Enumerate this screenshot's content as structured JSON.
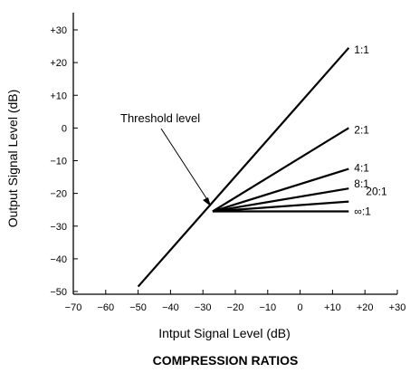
{
  "chart_data": {
    "type": "line",
    "title": "COMPRESSION RATIOS",
    "xlabel": "Intput Signal Level (dB)",
    "ylabel": "Output Signal Level (dB)",
    "xlim": [
      -70,
      30
    ],
    "ylim": [
      -52,
      32
    ],
    "xticks": [
      "−70",
      "−60",
      "−50",
      "−40",
      "−30",
      "−20",
      "−10",
      "0",
      "+10",
      "+20",
      "+30"
    ],
    "yticks": [
      "+30",
      "+20",
      "+10",
      "0",
      "−10",
      "−20",
      "−30",
      "−40",
      "−50"
    ],
    "xtick_values": [
      -70,
      -60,
      -50,
      -40,
      -30,
      -20,
      -10,
      0,
      10,
      20,
      30
    ],
    "ytick_values": [
      30,
      20,
      10,
      0,
      -10,
      -20,
      -30,
      -40,
      -50
    ],
    "threshold": {
      "x": -27,
      "y": -25.5
    },
    "series": [
      {
        "name": "1:1",
        "x": [
          -50,
          15
        ],
        "y": [
          -48.5,
          24.5
        ]
      },
      {
        "name": "2:1",
        "x": [
          -27,
          15
        ],
        "y": [
          -25.5,
          0
        ]
      },
      {
        "name": "4:1",
        "x": [
          -27,
          15
        ],
        "y": [
          -25.5,
          -12.5
        ]
      },
      {
        "name": "8:1",
        "x": [
          -27,
          15
        ],
        "y": [
          -25.5,
          -18.5
        ]
      },
      {
        "name": "20:1",
        "x": [
          -27,
          15
        ],
        "y": [
          -25.5,
          -22.5
        ]
      },
      {
        "name": "∞:1",
        "x": [
          -27,
          15
        ],
        "y": [
          -25.5,
          -25.5
        ]
      }
    ],
    "annotation": "Threshold level",
    "grid": false
  }
}
